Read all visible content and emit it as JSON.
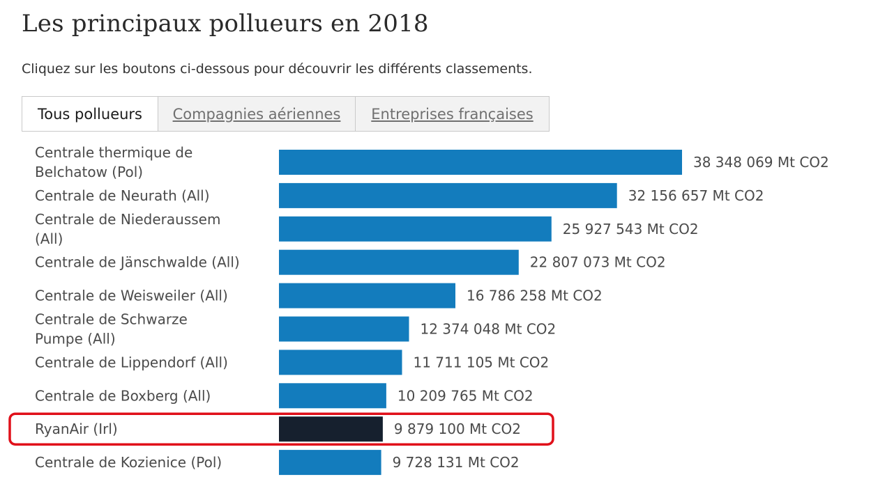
{
  "header": {
    "title": "Les principaux pollueurs en 2018",
    "subtitle": "Cliquez sur les boutons ci-dessous pour découvrir les différents classements."
  },
  "tabs": [
    {
      "label": "Tous pollueurs",
      "active": true
    },
    {
      "label": "Compagnies aériennes",
      "active": false
    },
    {
      "label": "Entreprises françaises",
      "active": false
    }
  ],
  "colors": {
    "bar": "#137cbd",
    "highlight_bar": "#16202e",
    "highlight_box": "#e0101a"
  },
  "chart_data": {
    "type": "bar",
    "orientation": "horizontal",
    "unit": "Mt CO2",
    "categories": [
      [
        "Centrale thermique de",
        "Belchatow (Pol)"
      ],
      [
        "Centrale de Neurath (All)"
      ],
      [
        "Centrale de Niederaussem",
        "(All)"
      ],
      [
        "Centrale de Jänschwalde (All)"
      ],
      [
        "Centrale de Weisweiler (All)"
      ],
      [
        "Centrale de Schwarze",
        "Pumpe (All)"
      ],
      [
        "Centrale de Lippendorf (All)"
      ],
      [
        "Centrale de Boxberg (All)"
      ],
      [
        "RyanAir (Irl)"
      ],
      [
        "Centrale de Kozienice (Pol)"
      ]
    ],
    "values": [
      38348069,
      32156657,
      25927543,
      22807073,
      16786258,
      12374048,
      11711105,
      10209765,
      9879100,
      9728131
    ],
    "value_labels": [
      "38 348 069 Mt CO2",
      "32 156 657 Mt CO2",
      "25 927 543 Mt CO2",
      "22 807 073 Mt CO2",
      "16 786 258 Mt CO2",
      "12 374 048 Mt CO2",
      "11 711 105 Mt CO2",
      "10 209 765 Mt CO2",
      "9 879 100 Mt CO2",
      "9 728 131 Mt CO2"
    ],
    "highlighted_index": 8,
    "xlim": [
      0,
      38348069
    ],
    "grid": false,
    "legend": "none"
  }
}
